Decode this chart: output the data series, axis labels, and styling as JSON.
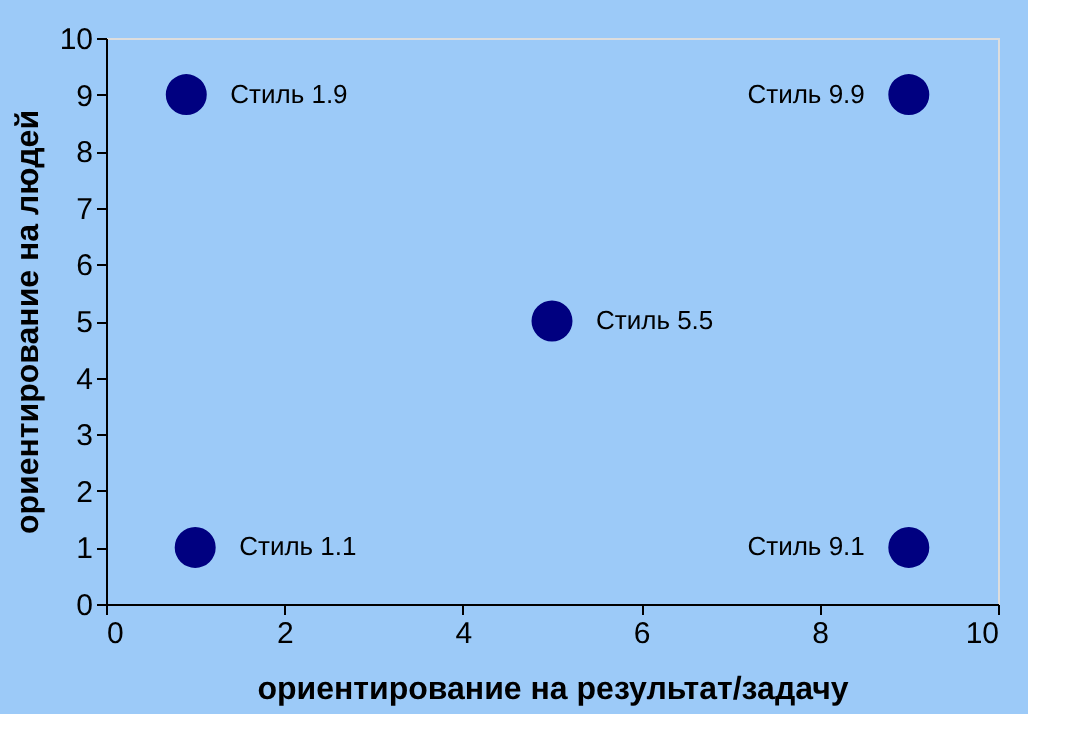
{
  "chart_data": {
    "type": "scatter",
    "xlabel": "ориентирование на результат/задачу",
    "ylabel": "ориентирование на людей",
    "x": [
      0.9,
      1,
      5,
      9,
      9
    ],
    "values": [
      9,
      1,
      5,
      9,
      1
    ],
    "color": "#000080",
    "marker": "circle",
    "xlim": [
      0,
      10
    ],
    "xticks": [
      0,
      2,
      4,
      6,
      8,
      10
    ],
    "ylim": [
      0,
      10
    ],
    "yticks": [
      0,
      1,
      2,
      3,
      4,
      5,
      6,
      7,
      8,
      9,
      10
    ],
    "grid": false,
    "annotations": [
      {
        "text": "Стиль 1.9",
        "x": 0.9,
        "y": 9
      },
      {
        "text": "Стиль 1.1",
        "x": 1,
        "y": 1
      },
      {
        "text": "Стиль 5.5",
        "x": 5,
        "y": 5
      },
      {
        "text": "Стиль 9.9",
        "x": 9,
        "y": 9
      },
      {
        "text": "Стиль 9.1",
        "x": 9,
        "y": 1
      }
    ]
  }
}
